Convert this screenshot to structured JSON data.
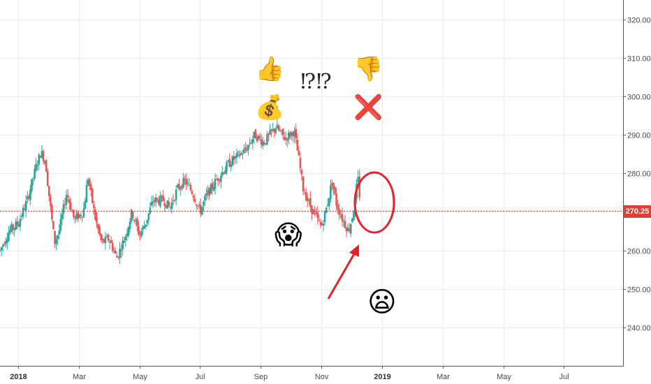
{
  "chart_data": {
    "type": "candlestick",
    "title": "",
    "xlabel": "",
    "ylabel": "",
    "ylim": [
      230,
      325
    ],
    "y_ticks": [
      "240.00",
      "250.00",
      "260.00",
      "270.00",
      "280.00",
      "290.00",
      "300.00",
      "310.00",
      "320.00"
    ],
    "x_ticks": [
      {
        "label": "2018",
        "month": 12,
        "year_label": true
      },
      {
        "label": "Mar",
        "month": 14
      },
      {
        "label": "May",
        "month": 16
      },
      {
        "label": "Jul",
        "month": 18
      },
      {
        "label": "Sep",
        "month": 20
      },
      {
        "label": "Nov",
        "month": 22
      },
      {
        "label": "2019",
        "month": 24,
        "year_label": true
      },
      {
        "label": "Mar",
        "month": 26
      },
      {
        "label": "May",
        "month": 28
      },
      {
        "label": "Jul",
        "month": 30
      }
    ],
    "x_range_months": [
      11.4,
      31.95
    ],
    "last_price": "270.25",
    "last_price_value": 270.25,
    "up_color": "#26a69a",
    "down_color": "#ef5350",
    "price_path": [
      {
        "m": 11.4,
        "v": 260
      },
      {
        "m": 11.7,
        "v": 265
      },
      {
        "m": 12.0,
        "v": 267
      },
      {
        "m": 12.3,
        "v": 273
      },
      {
        "m": 12.6,
        "v": 282
      },
      {
        "m": 12.75,
        "v": 285.5
      },
      {
        "m": 12.9,
        "v": 283
      },
      {
        "m": 13.05,
        "v": 272
      },
      {
        "m": 13.2,
        "v": 262
      },
      {
        "m": 13.35,
        "v": 265
      },
      {
        "m": 13.6,
        "v": 275
      },
      {
        "m": 13.85,
        "v": 268
      },
      {
        "m": 14.15,
        "v": 270
      },
      {
        "m": 14.3,
        "v": 279
      },
      {
        "m": 14.55,
        "v": 268
      },
      {
        "m": 14.75,
        "v": 262
      },
      {
        "m": 15.0,
        "v": 263
      },
      {
        "m": 15.25,
        "v": 258
      },
      {
        "m": 15.55,
        "v": 264
      },
      {
        "m": 15.75,
        "v": 270
      },
      {
        "m": 16.0,
        "v": 264
      },
      {
        "m": 16.2,
        "v": 267
      },
      {
        "m": 16.45,
        "v": 273
      },
      {
        "m": 16.8,
        "v": 273
      },
      {
        "m": 17.0,
        "v": 271
      },
      {
        "m": 17.25,
        "v": 276
      },
      {
        "m": 17.5,
        "v": 278
      },
      {
        "m": 17.75,
        "v": 275
      },
      {
        "m": 18.0,
        "v": 270
      },
      {
        "m": 18.2,
        "v": 274
      },
      {
        "m": 18.6,
        "v": 279
      },
      {
        "m": 19.0,
        "v": 283
      },
      {
        "m": 19.5,
        "v": 286
      },
      {
        "m": 19.8,
        "v": 290
      },
      {
        "m": 20.1,
        "v": 288
      },
      {
        "m": 20.5,
        "v": 292
      },
      {
        "m": 20.8,
        "v": 289
      },
      {
        "m": 21.1,
        "v": 291
      },
      {
        "m": 21.25,
        "v": 284
      },
      {
        "m": 21.4,
        "v": 276
      },
      {
        "m": 21.6,
        "v": 272
      },
      {
        "m": 21.8,
        "v": 269
      },
      {
        "m": 22.0,
        "v": 266
      },
      {
        "m": 22.2,
        "v": 272
      },
      {
        "m": 22.35,
        "v": 278
      },
      {
        "m": 22.5,
        "v": 272
      },
      {
        "m": 22.7,
        "v": 268
      },
      {
        "m": 22.9,
        "v": 265
      },
      {
        "m": 23.0,
        "v": 268
      },
      {
        "m": 23.1,
        "v": 272
      },
      {
        "m": 23.2,
        "v": 279
      },
      {
        "m": 23.3,
        "v": 271
      }
    ],
    "annotations": [
      {
        "type": "emoji",
        "name": "thumbs-up-icon",
        "glyph": "👍"
      },
      {
        "type": "emoji",
        "name": "money-bag-icon",
        "glyph": "💰"
      },
      {
        "type": "text",
        "name": "interrobang-text",
        "text": "⁉⁉"
      },
      {
        "type": "emoji",
        "name": "thumbs-down-icon",
        "glyph": "👎"
      },
      {
        "type": "emoji",
        "name": "cross-mark-icon",
        "glyph": "❌"
      },
      {
        "type": "emoji",
        "name": "screaming-face-icon",
        "glyph": "😱"
      },
      {
        "type": "emoji",
        "name": "frowning-face-icon",
        "glyph": "😦"
      }
    ],
    "annotation_color": "#e8202a"
  }
}
